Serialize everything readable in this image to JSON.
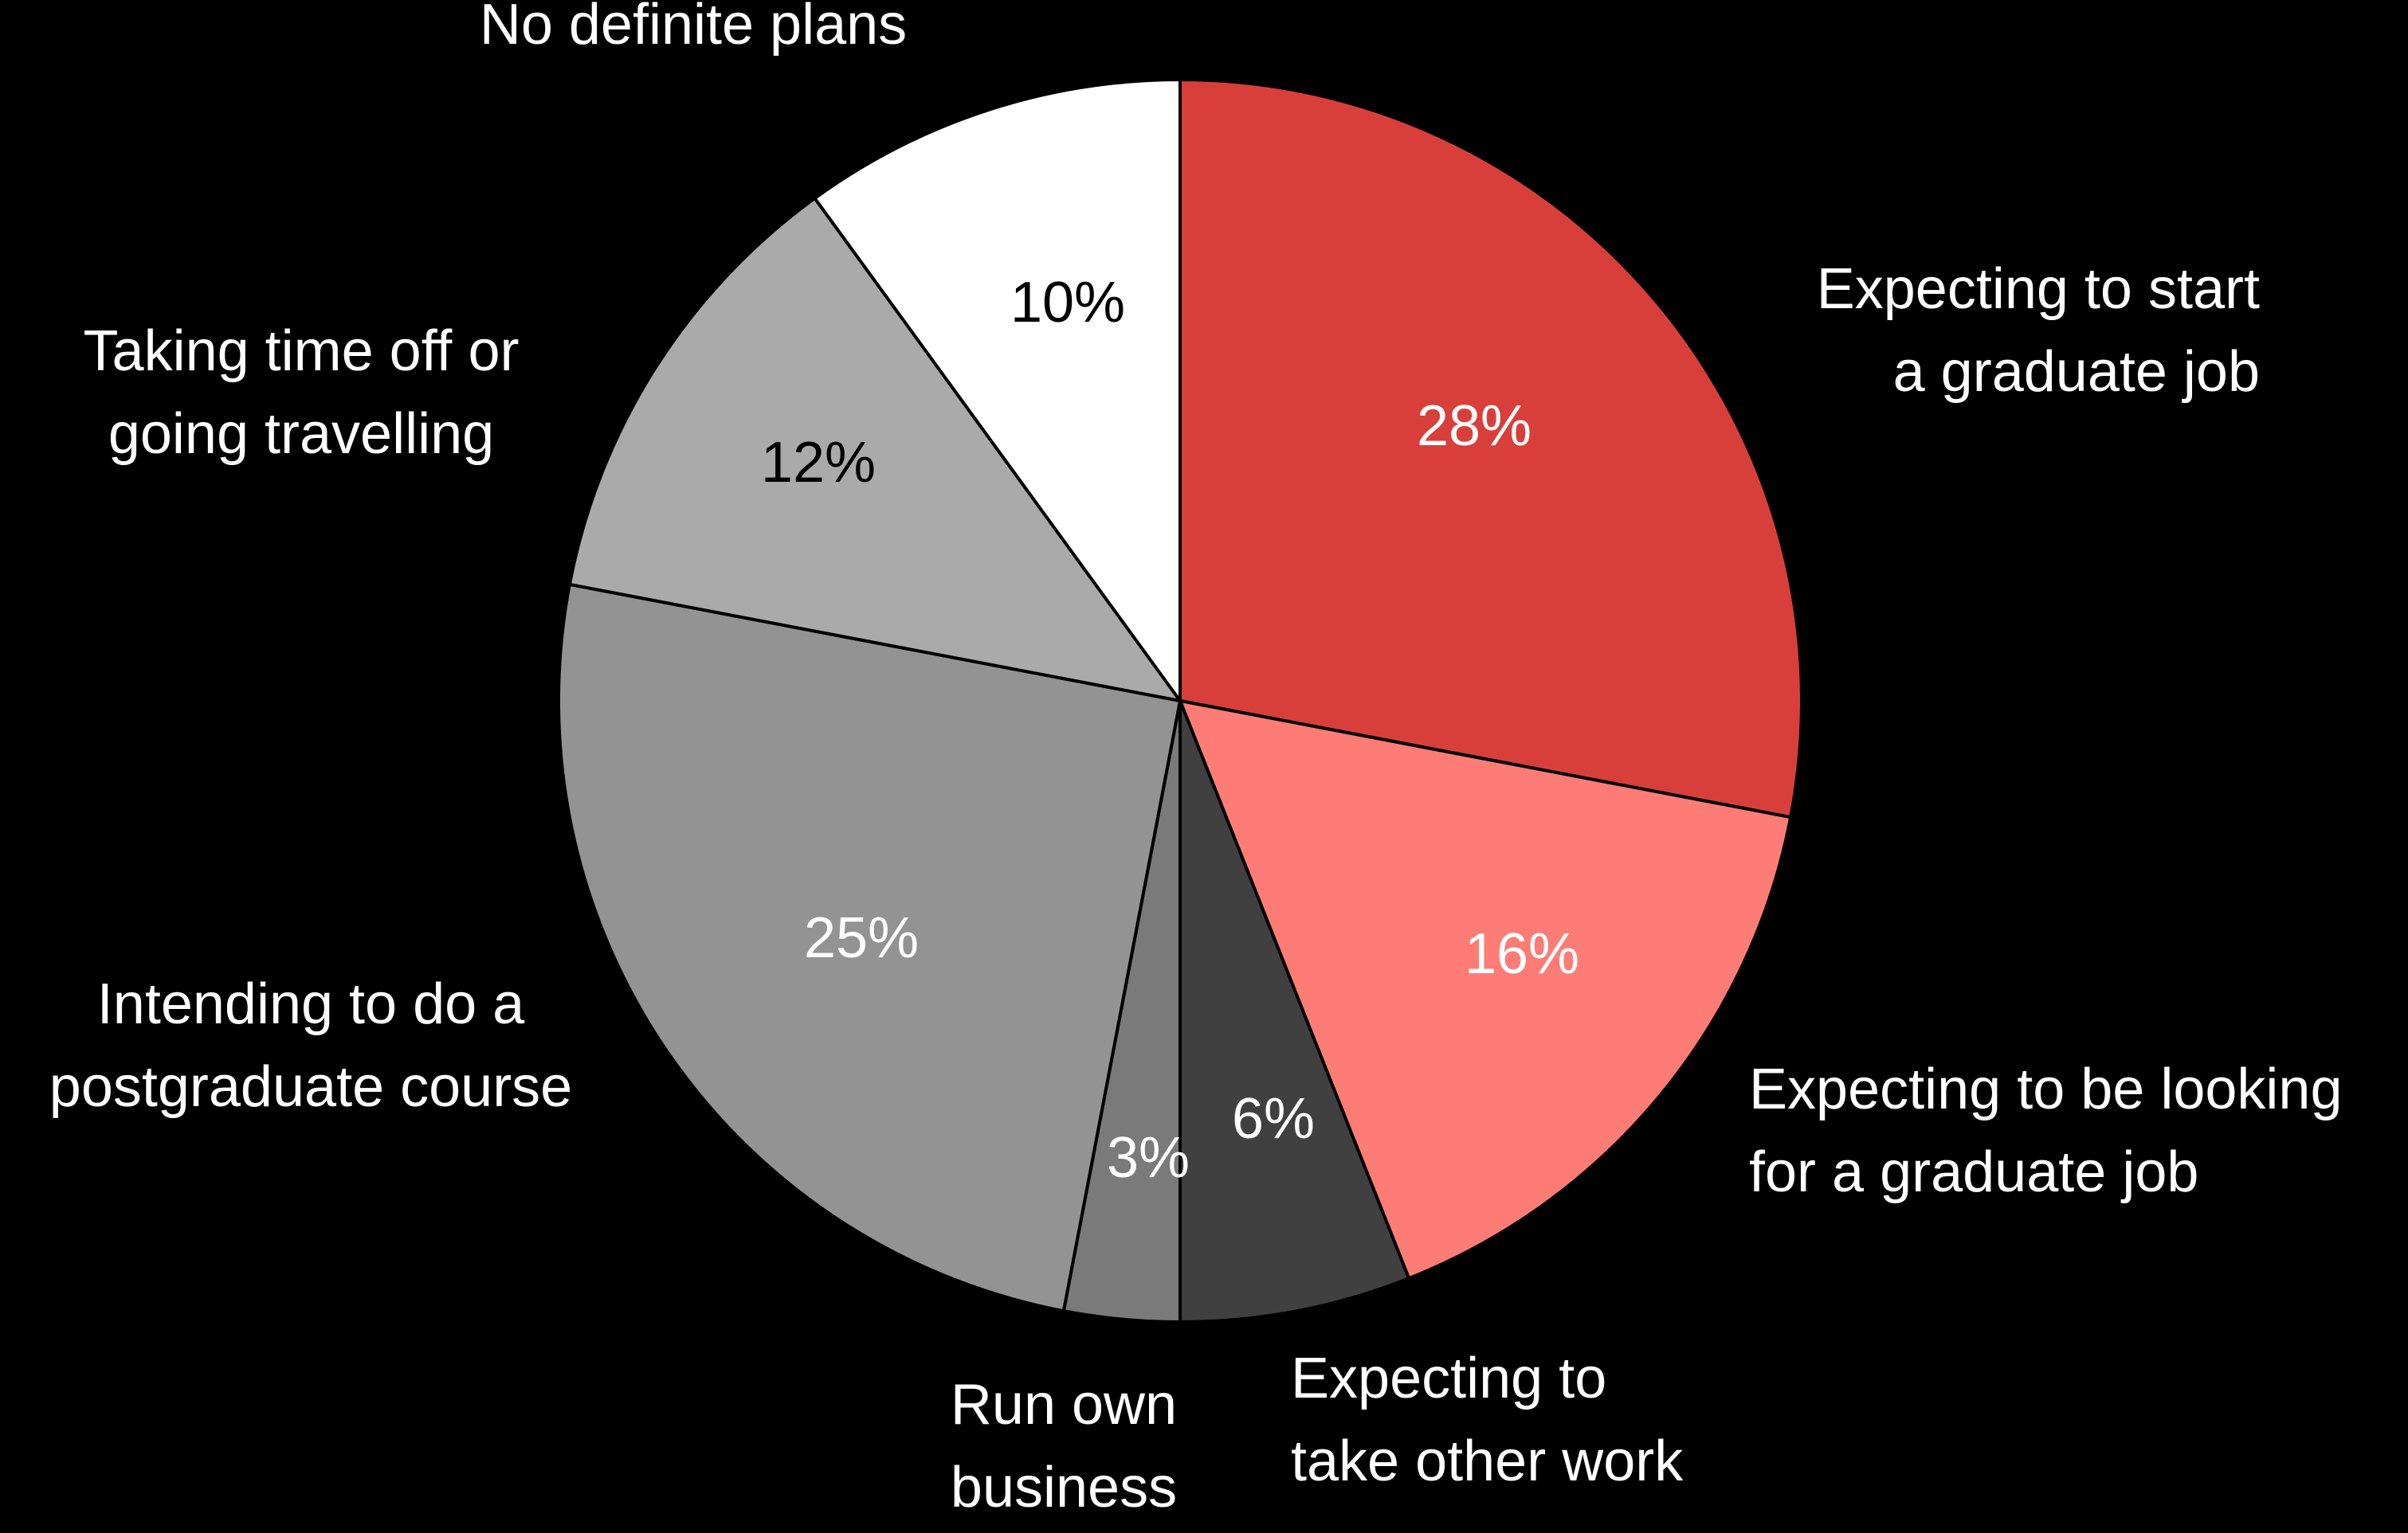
{
  "chart_data": {
    "type": "pie",
    "title": "",
    "start": "12 o'clock",
    "direction": "clockwise",
    "legend": "none (labels placed beside slices)",
    "slices": [
      {
        "label": "Expecting to start a graduate job",
        "label_lines": [
          "Expecting to start",
          "a graduate job"
        ],
        "value": 28,
        "value_label": "28%",
        "color": "#d93f3a",
        "text_color": "#ffffff"
      },
      {
        "label": "Expecting to be looking for a graduate job",
        "label_lines": [
          "Expecting to be looking",
          "for a graduate job"
        ],
        "value": 16,
        "value_label": "16%",
        "color": "#fd7c76",
        "text_color": "#ffffff"
      },
      {
        "label": "Expecting to take other work",
        "label_lines": [
          "Expecting to",
          "take other work"
        ],
        "value": 6,
        "value_label": "6%",
        "color": "#404040",
        "text_color": "#ffffff"
      },
      {
        "label": "Run own business",
        "label_lines": [
          "Run own",
          "business"
        ],
        "value": 3,
        "value_label": "3%",
        "color": "#7a7a7a",
        "text_color": "#ffffff"
      },
      {
        "label": "Intending to do a postgraduate course",
        "label_lines": [
          "Intending to do a",
          "postgraduate course"
        ],
        "value": 25,
        "value_label": "25%",
        "color": "#939393",
        "text_color": "#ffffff"
      },
      {
        "label": "Taking time off or going travelling",
        "label_lines": [
          "Taking time off or",
          "going travelling"
        ],
        "value": 12,
        "value_label": "12%",
        "color": "#aaaaaa",
        "text_color": "#000000"
      },
      {
        "label": "No definite plans",
        "label_lines": [
          "No definite plans"
        ],
        "value": 10,
        "value_label": "10%",
        "color": "#ffffff",
        "text_color": "#000000"
      }
    ]
  }
}
